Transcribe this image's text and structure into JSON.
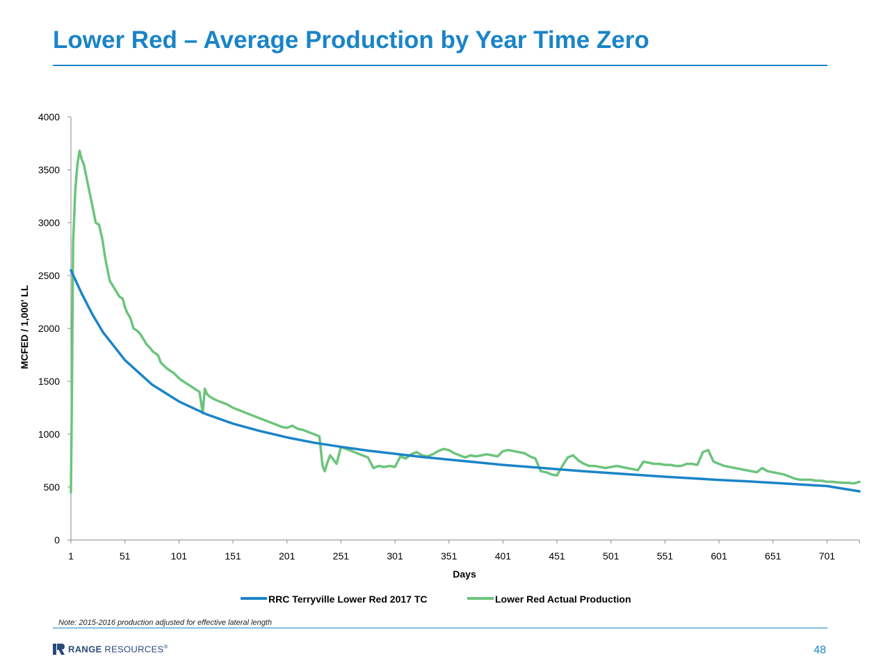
{
  "slide": {
    "title": "Lower Red – Average Production by Year Time Zero",
    "note": "Note: 2015-2016 production adjusted for effective lateral length",
    "page_number": "48",
    "logo_brand": "RANGE",
    "logo_suffix": "RESOURCES",
    "logo_mark": "®"
  },
  "colors": {
    "title": "#1a84c7",
    "type_curve": "#1a84c7",
    "actual": "#6cc47c",
    "axis": "#888888"
  },
  "chart_data": {
    "type": "line",
    "xlabel": "Days",
    "ylabel": "MCFED / 1,000' LL",
    "xlim": [
      1,
      731
    ],
    "ylim": [
      0,
      4000
    ],
    "x_ticks": [
      1,
      51,
      101,
      151,
      201,
      251,
      301,
      351,
      401,
      451,
      501,
      551,
      601,
      651,
      701
    ],
    "y_ticks": [
      0,
      500,
      1000,
      1500,
      2000,
      2500,
      3000,
      3500,
      4000
    ],
    "legend_position": "bottom",
    "series": [
      {
        "name": "RRC Terryville Lower Red 2017 TC",
        "color": "#1a84c7",
        "x": [
          1,
          11,
          21,
          31,
          51,
          76,
          101,
          126,
          151,
          176,
          201,
          226,
          251,
          276,
          301,
          326,
          351,
          376,
          401,
          426,
          451,
          476,
          501,
          526,
          551,
          576,
          601,
          626,
          651,
          676,
          701,
          731
        ],
        "values": [
          2550,
          2330,
          2130,
          1960,
          1700,
          1470,
          1310,
          1190,
          1100,
          1030,
          970,
          920,
          880,
          845,
          815,
          785,
          760,
          735,
          710,
          690,
          670,
          650,
          632,
          615,
          598,
          583,
          568,
          555,
          540,
          525,
          510,
          460
        ]
      },
      {
        "name": "Lower Red  Actual Production",
        "color": "#6cc47c",
        "x": [
          1,
          2,
          3,
          5,
          7,
          9,
          11,
          13,
          15,
          18,
          21,
          24,
          27,
          30,
          33,
          35,
          37,
          40,
          43,
          46,
          49,
          51,
          53,
          56,
          59,
          62,
          65,
          68,
          71,
          74,
          77,
          80,
          82,
          84,
          87,
          90,
          93,
          96,
          99,
          102,
          105,
          108,
          111,
          114,
          117,
          120,
          123,
          125,
          127,
          129,
          132,
          136,
          141,
          146,
          151,
          156,
          161,
          166,
          171,
          176,
          181,
          186,
          191,
          196,
          201,
          206,
          211,
          216,
          221,
          226,
          231,
          234,
          236,
          238,
          241,
          244,
          247,
          251,
          256,
          261,
          266,
          271,
          276,
          281,
          286,
          291,
          296,
          301,
          306,
          311,
          316,
          321,
          326,
          331,
          336,
          341,
          346,
          351,
          356,
          361,
          366,
          371,
          376,
          381,
          386,
          391,
          396,
          401,
          406,
          411,
          416,
          421,
          426,
          431,
          436,
          441,
          446,
          451,
          456,
          461,
          466,
          471,
          476,
          481,
          486,
          491,
          496,
          501,
          506,
          511,
          516,
          521,
          526,
          531,
          536,
          541,
          546,
          551,
          556,
          561,
          566,
          571,
          576,
          581,
          586,
          591,
          596,
          601,
          606,
          611,
          616,
          621,
          626,
          631,
          636,
          641,
          646,
          651,
          656,
          661,
          666,
          671,
          676,
          681,
          686,
          691,
          696,
          701,
          706,
          711,
          716,
          721,
          726,
          731
        ],
        "values": [
          450,
          1500,
          2800,
          3300,
          3550,
          3680,
          3600,
          3550,
          3450,
          3300,
          3150,
          3000,
          2980,
          2850,
          2650,
          2550,
          2450,
          2400,
          2350,
          2300,
          2280,
          2200,
          2150,
          2100,
          2000,
          1980,
          1950,
          1900,
          1850,
          1820,
          1780,
          1760,
          1740,
          1680,
          1650,
          1620,
          1600,
          1580,
          1550,
          1520,
          1500,
          1480,
          1460,
          1440,
          1420,
          1400,
          1200,
          1430,
          1380,
          1360,
          1340,
          1320,
          1300,
          1280,
          1250,
          1230,
          1210,
          1190,
          1170,
          1150,
          1130,
          1110,
          1090,
          1070,
          1060,
          1080,
          1050,
          1040,
          1020,
          1000,
          980,
          700,
          650,
          720,
          800,
          760,
          720,
          880,
          860,
          840,
          820,
          800,
          780,
          680,
          700,
          690,
          700,
          690,
          790,
          770,
          810,
          830,
          800,
          790,
          810,
          840,
          860,
          850,
          820,
          800,
          780,
          800,
          790,
          800,
          810,
          800,
          790,
          840,
          850,
          840,
          830,
          820,
          790,
          770,
          650,
          640,
          620,
          610,
          700,
          780,
          800,
          750,
          720,
          700,
          700,
          690,
          680,
          690,
          700,
          690,
          680,
          670,
          660,
          740,
          730,
          720,
          720,
          710,
          710,
          700,
          700,
          720,
          720,
          710,
          830,
          850,
          740,
          720,
          700,
          690,
          680,
          670,
          660,
          650,
          640,
          680,
          650,
          640,
          630,
          620,
          600,
          580,
          570,
          570,
          570,
          560,
          560,
          550,
          550,
          545,
          540,
          540,
          535,
          550
        ]
      }
    ]
  }
}
